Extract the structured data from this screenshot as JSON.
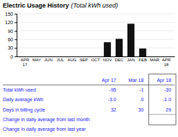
{
  "chart_data": {
    "type": "bar",
    "title": "Electric Usage History",
    "subtitle": "(Total kWh used)",
    "categories": [
      "APR\n17",
      "MAY",
      "JUN",
      "JUL",
      "AUG",
      "SEP",
      "OCT",
      "NOV",
      "DEC",
      "JAN",
      "FEB",
      "MAR",
      "APR\n18"
    ],
    "values": [
      0,
      0,
      0,
      0,
      0,
      0,
      0,
      50,
      62,
      115,
      28,
      0,
      0
    ],
    "color": "#111111",
    "ylim": [
      0,
      150
    ],
    "yticks": [
      0,
      30,
      60,
      90,
      120,
      150
    ],
    "grid": true,
    "table": {
      "color": "#1a1aff",
      "columns": [
        null,
        "Apr 17",
        "Mar 18",
        "Apr 18"
      ],
      "rows": [
        [
          "Total kWh used",
          "-95",
          "-1",
          "-30"
        ],
        [
          "Daily average kWh",
          "-3.0",
          ".0",
          "-1.0"
        ],
        [
          "Days in billing cycle",
          "32",
          "30",
          "29"
        ],
        [
          "Change in daily average from last month",
          null,
          null,
          null
        ],
        [
          "Change in daily average from last year",
          null,
          null,
          null
        ]
      ]
    }
  }
}
